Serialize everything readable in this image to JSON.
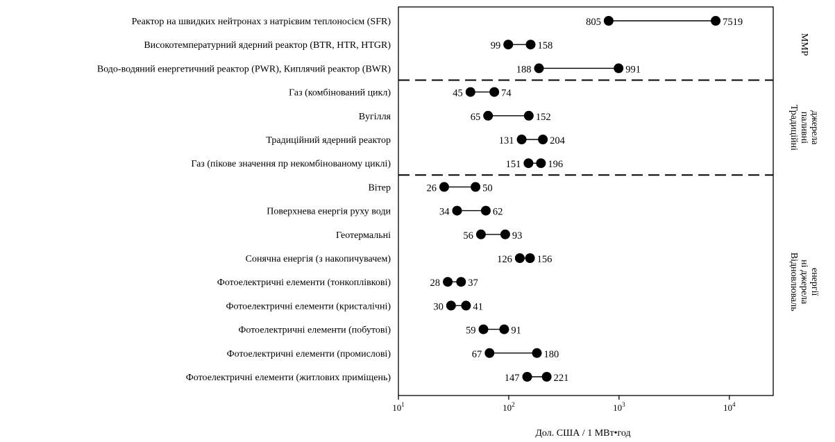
{
  "chart_data": {
    "type": "dumbbell",
    "title": "",
    "xlabel": "Дол. США / 1 МВт•год",
    "ylabel": "",
    "x_scale": "log",
    "xlim": [
      10,
      25000
    ],
    "ticks": [
      {
        "value": 10,
        "base": "10",
        "exp": "1"
      },
      {
        "value": 100,
        "base": "10",
        "exp": "2"
      },
      {
        "value": 1000,
        "base": "10",
        "exp": "3"
      },
      {
        "value": 10000,
        "base": "10",
        "exp": "4"
      }
    ],
    "grid": false,
    "rows": [
      {
        "label": "Реактор на швидких нейтронах з натрієвим теплоносієм (SFR)",
        "low": 805,
        "high": 7519
      },
      {
        "label": "Високотемпературний ядерний реактор (BTR, HTR, HTGR)",
        "low": 99,
        "high": 158
      },
      {
        "label": "Водо-водяний енергетичний реактор (PWR), Киплячий реактор (BWR)",
        "low": 188,
        "high": 991
      },
      {
        "label": "Газ (комбінований цикл)",
        "low": 45,
        "high": 74
      },
      {
        "label": "Вугілля",
        "low": 65,
        "high": 152
      },
      {
        "label": "Традиційний ядерний реактор",
        "low": 131,
        "high": 204
      },
      {
        "label": "Газ (пікове значення пр некомбінованому циклі)",
        "low": 151,
        "high": 196
      },
      {
        "label": "Вітер",
        "low": 26,
        "high": 50
      },
      {
        "label": "Поверхнева енергія руху води",
        "low": 34,
        "high": 62
      },
      {
        "label": "Геотермальні",
        "low": 56,
        "high": 93
      },
      {
        "label": "Сонячна енергія (з накопичувачем)",
        "low": 126,
        "high": 156
      },
      {
        "label": "Фотоелектричні елементи (тонкоплівкові)",
        "low": 28,
        "high": 37
      },
      {
        "label": "Фотоелектричні елементи (кристалічні)",
        "low": 30,
        "high": 41
      },
      {
        "label": "Фотоелектричні елементи (побутові)",
        "low": 59,
        "high": 91
      },
      {
        "label": "Фотоелектричні елементи (промислові)",
        "low": 67,
        "high": 180
      },
      {
        "label": "Фотоелектричні елементи (житлових приміщень)",
        "low": 147,
        "high": 221
      }
    ],
    "groups": [
      {
        "lines": [
          "ММР"
        ],
        "first_row": 0,
        "last_row": 2
      },
      {
        "lines": [
          "Традиційні",
          "паливні",
          "джерела"
        ],
        "first_row": 3,
        "last_row": 6
      },
      {
        "lines": [
          "Відновлюваль",
          "ні джерела",
          "енергії"
        ],
        "first_row": 7,
        "last_row": 15
      }
    ]
  }
}
